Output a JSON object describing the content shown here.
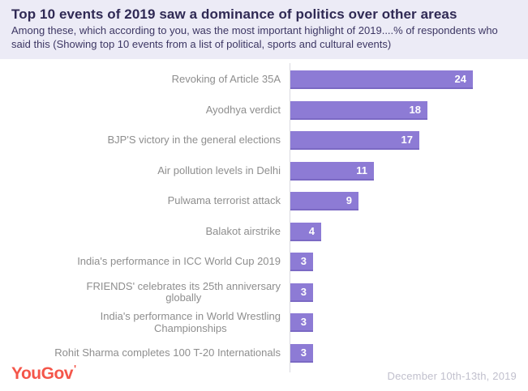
{
  "header": {
    "title": "Top 10 events of 2019 saw a dominance of politics over other areas",
    "subtitle": "Among these, which according to you, was the most important highlight of 2019....% of respondents who said this (Showing top 10 events from a list of political, sports and cultural events)"
  },
  "chart_data": {
    "type": "bar",
    "orientation": "horizontal",
    "title": "Top 10 events of 2019 saw a dominance of politics over other areas",
    "xlabel": "% of respondents",
    "ylabel": "",
    "xlim": [
      0,
      24
    ],
    "grid": false,
    "legend": "none",
    "categories": [
      "Revoking of Article 35A",
      "Ayodhya verdict",
      "BJP'S victory in the general elections",
      "Air pollution levels in Delhi",
      "Pulwama terrorist attack",
      "Balakot airstrike",
      "India's performance in ICC World Cup 2019",
      "FRIENDS' celebrates its 25th anniversary\nglobally",
      "India's performance in World Wrestling\nChampionships",
      "Rohit Sharma completes 100 T-20 Internationals"
    ],
    "values": [
      24,
      18,
      17,
      11,
      9,
      4,
      3,
      3,
      3,
      3
    ],
    "bar_color": "#8d7bd5",
    "bar_edge_color": "#7b69c4",
    "value_label_color": "#ffffff",
    "category_label_color": "#8e8e8e"
  },
  "footer": {
    "logo_text": "YouGov",
    "logo_tick": "'",
    "date_range": "December 10th-13th, 2019"
  },
  "colors": {
    "header_background": "#ecebf6",
    "title_text": "#2f2954",
    "subtitle_text": "#3c3663",
    "axis_line": "#dadae0",
    "logo_red": "#f4564a",
    "date_text": "#c1c0cd"
  }
}
